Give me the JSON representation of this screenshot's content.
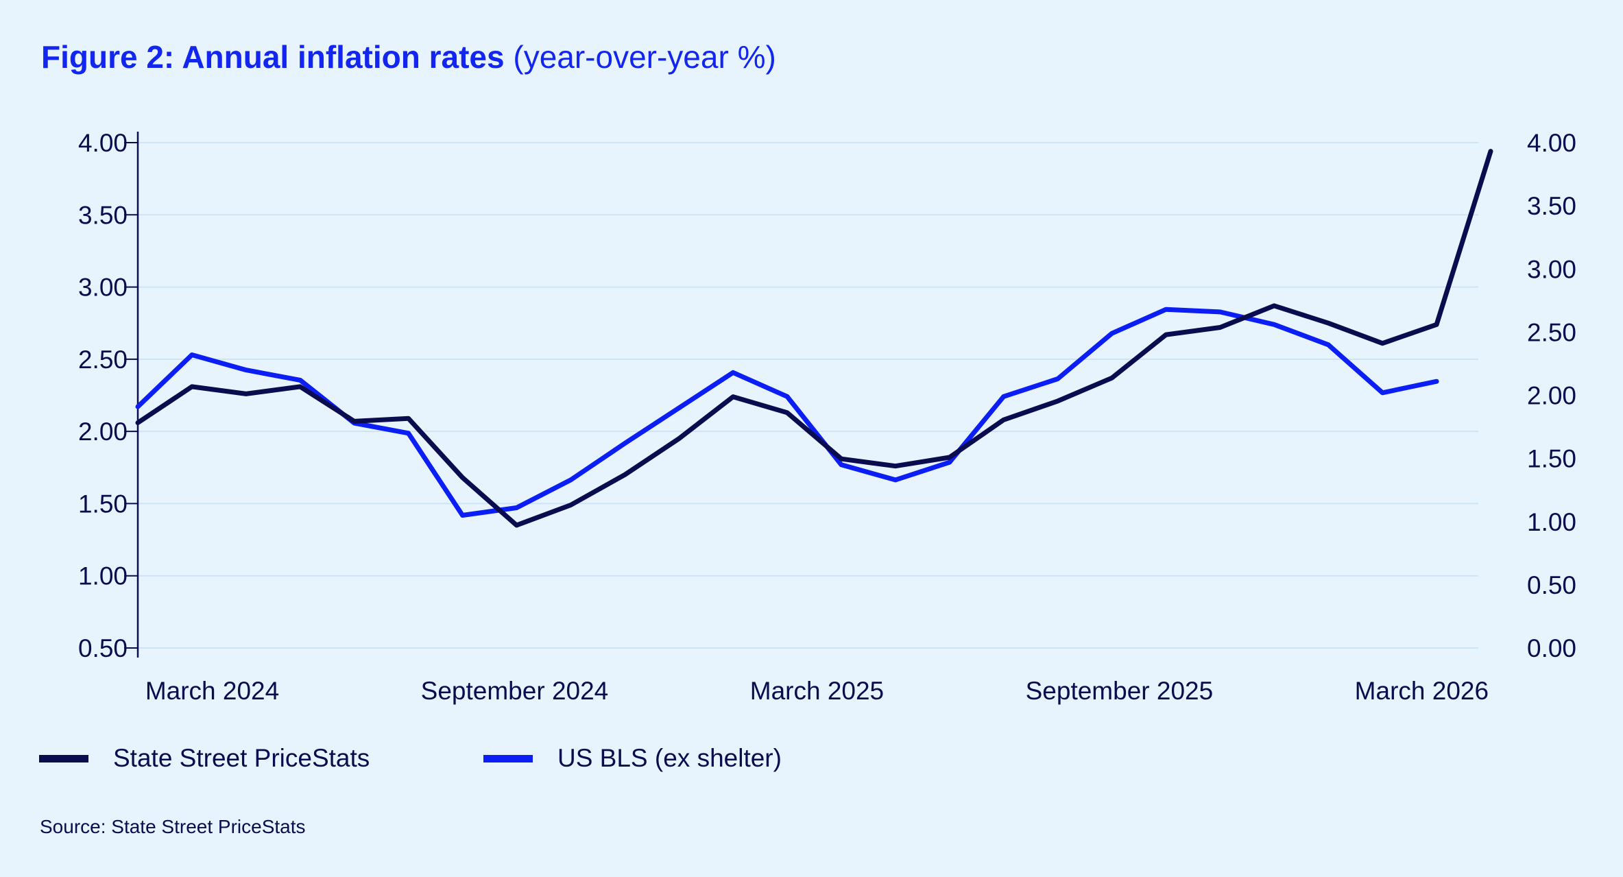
{
  "chart_data": {
    "type": "line",
    "title": "Figure 2: Annual inflation rates",
    "subtitle": "(year-over-year %)",
    "x_tick_labels": [
      "March 2024",
      "September 2024",
      "March 2025",
      "September 2025",
      "March 2026"
    ],
    "y_left": {
      "range": [
        0.5,
        4.0
      ],
      "ticks": [
        "4.00",
        "3.50",
        "3.00",
        "2.50",
        "2.00",
        "1.50",
        "1.00",
        "0.50"
      ]
    },
    "y_right": {
      "range": [
        0.0,
        4.0
      ],
      "ticks": [
        "4.00",
        "3.50",
        "3.00",
        "2.50",
        "2.00",
        "1.50",
        "1.00",
        "0.50",
        "0.00"
      ]
    },
    "grid": true,
    "legend_placement": "bottom-left",
    "series": [
      {
        "name": "State Street PriceStats",
        "axis": "left",
        "color": "#0b0c4f",
        "values": [
          2.06,
          2.31,
          2.26,
          2.31,
          2.07,
          2.09,
          1.68,
          1.35,
          1.49,
          1.7,
          1.95,
          2.24,
          2.13,
          1.81,
          1.76,
          1.82,
          2.08,
          2.21,
          2.37,
          2.67,
          2.72,
          2.87,
          2.75,
          2.61,
          2.74,
          3.94
        ]
      },
      {
        "name": "US BLS (ex shelter)",
        "axis": "right",
        "color": "#0a1ef5",
        "values": [
          1.91,
          2.32,
          2.2,
          2.12,
          1.78,
          1.7,
          1.05,
          1.11,
          1.33,
          1.62,
          1.9,
          2.18,
          1.99,
          1.45,
          1.33,
          1.47,
          1.99,
          2.13,
          2.49,
          2.68,
          2.66,
          2.56,
          2.4,
          2.02,
          2.11
        ]
      }
    ]
  },
  "source": "Source: State Street PriceStats"
}
